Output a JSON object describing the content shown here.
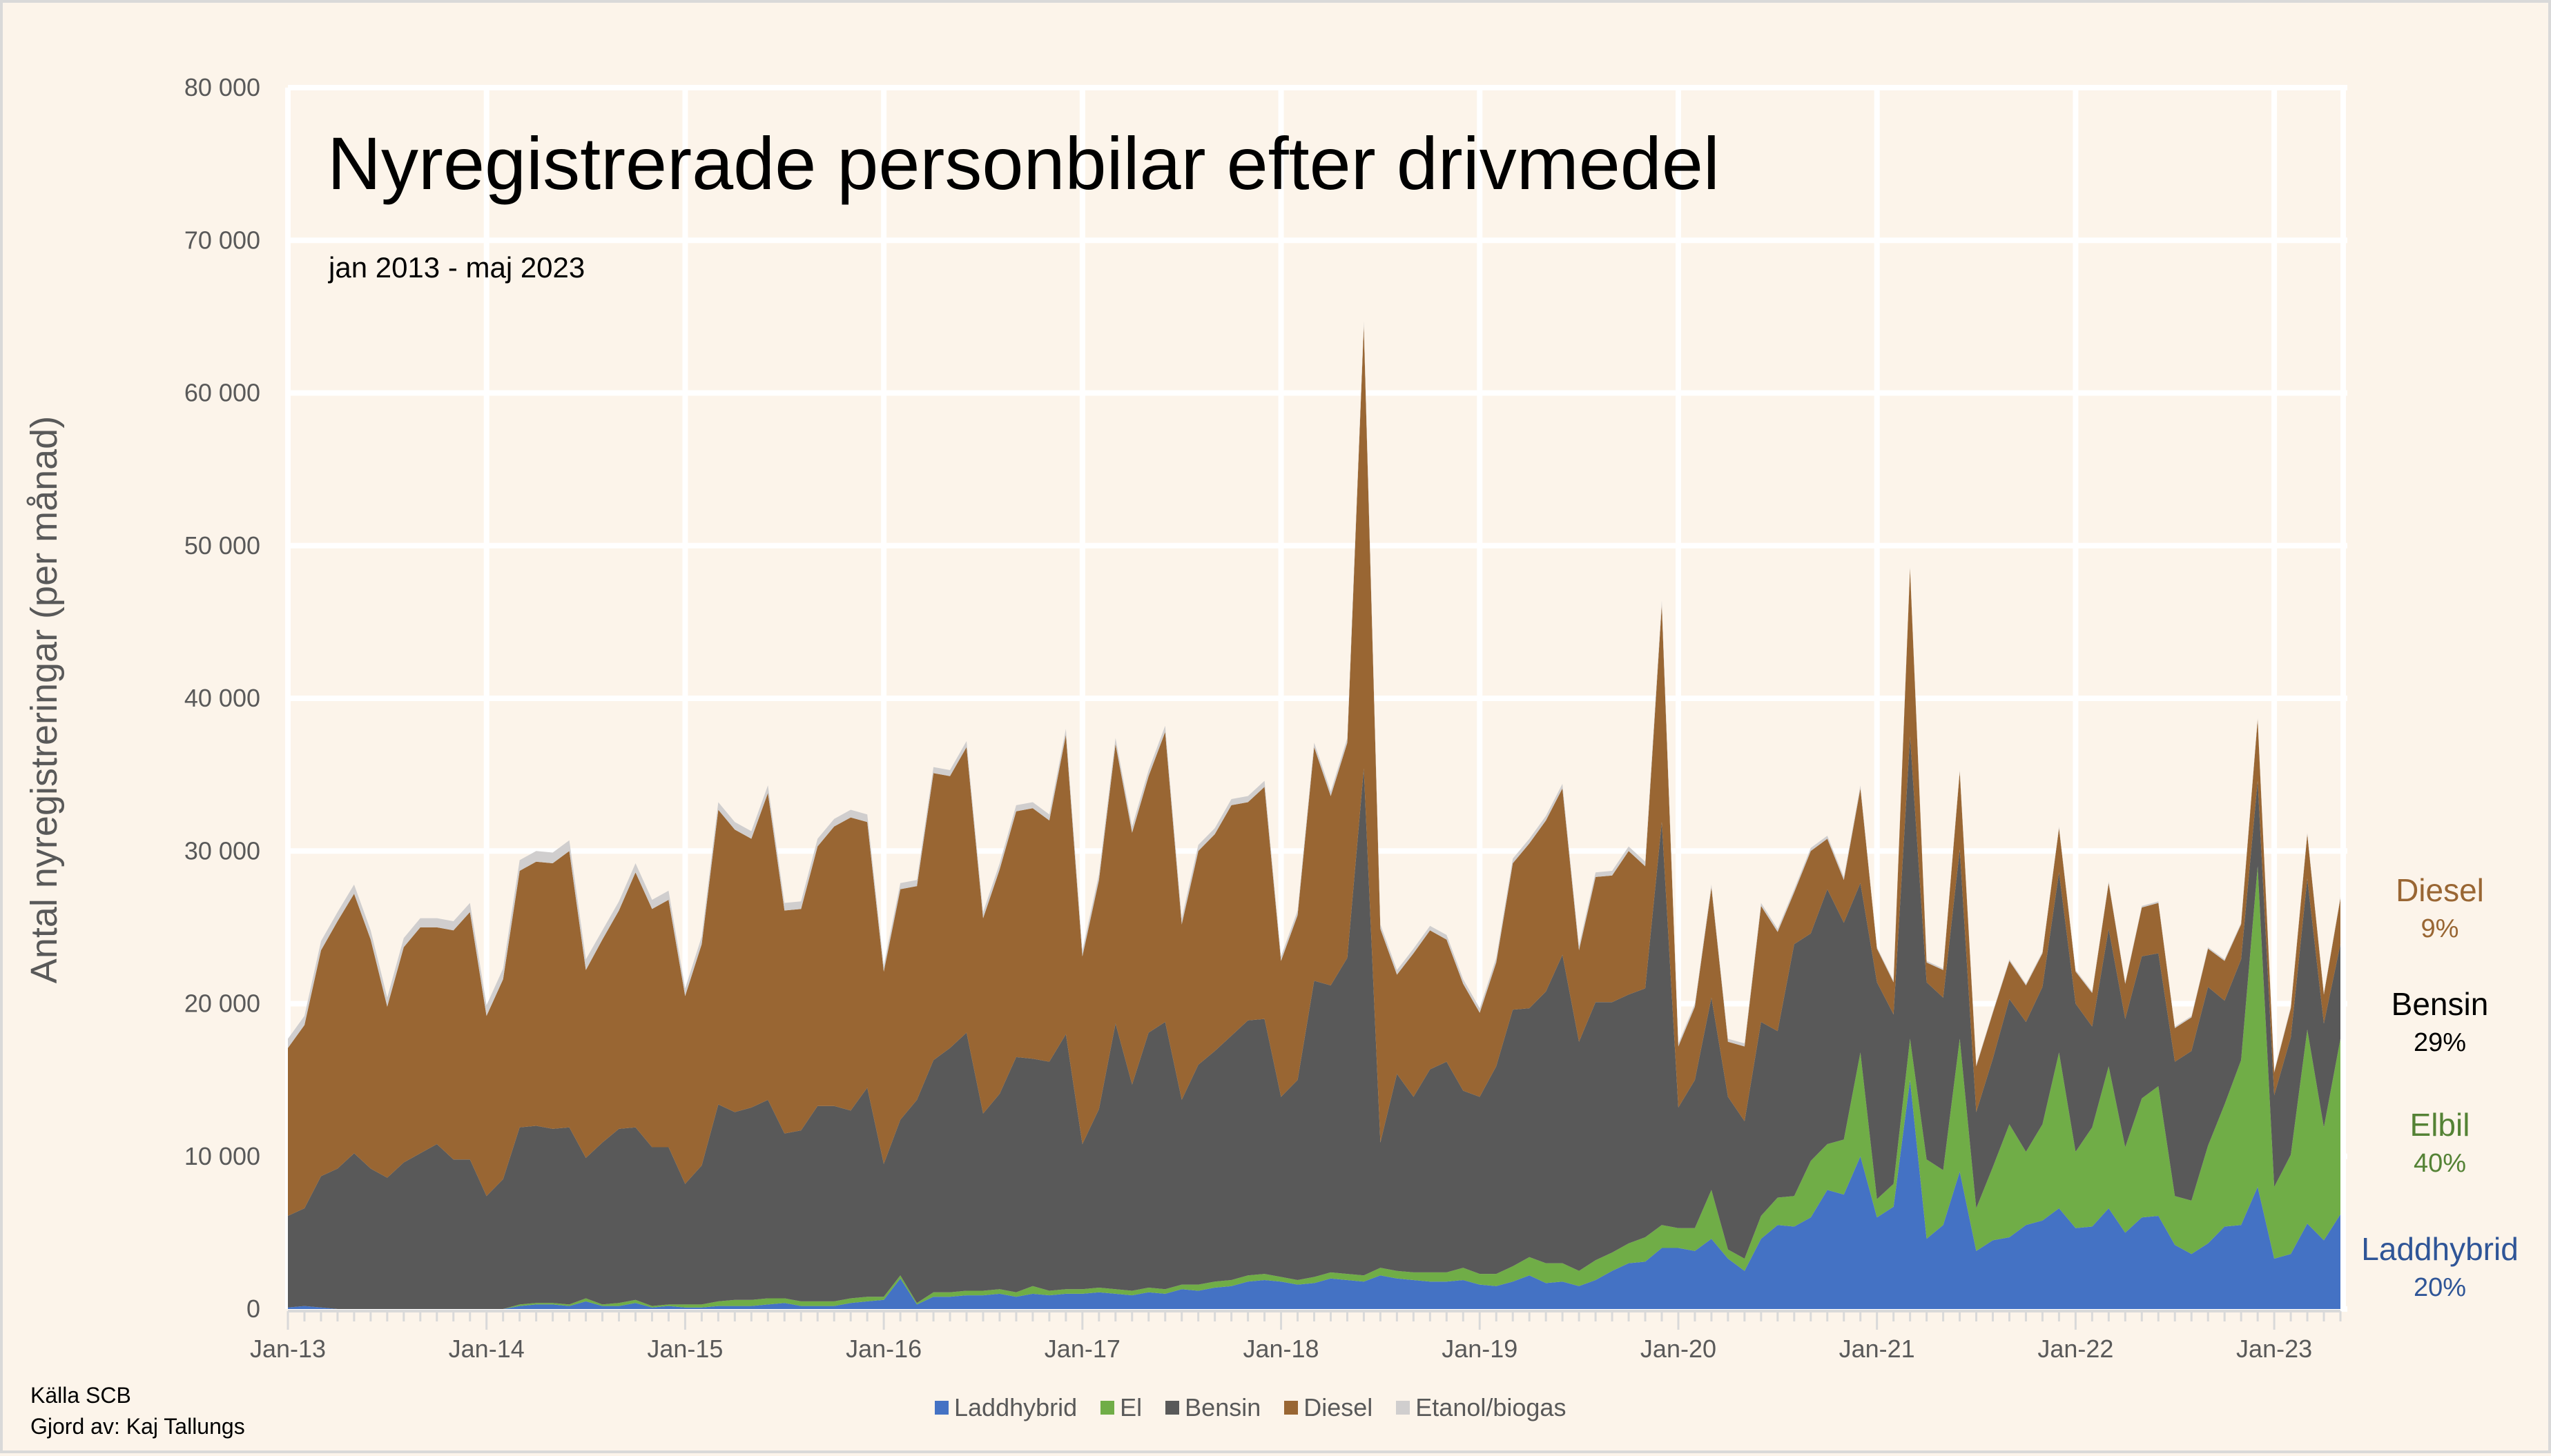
{
  "chart_data": {
    "type": "area",
    "stacked": true,
    "title": "Nyregistrerade personbilar efter drivmedel",
    "subtitle": "jan 2013 - maj 2023",
    "ylabel": "Antal nyregistreringar (per månad)",
    "ylim": [
      0,
      80000
    ],
    "yticks": [
      "0",
      "10 000",
      "20 000",
      "30 000",
      "40 000",
      "50 000",
      "60 000",
      "70 000",
      "80 000"
    ],
    "xtick_labels": [
      "Jan-13",
      "Jan-14",
      "Jan-15",
      "Jan-16",
      "Jan-17",
      "Jan-18",
      "Jan-19",
      "Jan-20",
      "Jan-21",
      "Jan-22",
      "Jan-23"
    ],
    "x_start": "2013-01",
    "months": 125,
    "grid": true,
    "legend_position": "bottom",
    "series": [
      {
        "name": "Laddhybrid",
        "color": "#4472c4",
        "values": [
          100,
          200,
          100,
          0,
          0,
          0,
          0,
          0,
          0,
          0,
          0,
          0,
          0,
          0,
          200,
          300,
          300,
          200,
          500,
          200,
          200,
          400,
          100,
          200,
          100,
          100,
          200,
          200,
          200,
          300,
          400,
          200,
          200,
          200,
          400,
          500,
          600,
          2000,
          300,
          800,
          800,
          900,
          900,
          1000,
          800,
          1000,
          900,
          1000,
          1000,
          1100,
          1000,
          900,
          1100,
          1000,
          1300,
          1200,
          1400,
          1500,
          1800,
          1900,
          1800,
          1600,
          1700,
          2000,
          1900,
          1800,
          2200,
          2000,
          1900,
          1800,
          1800,
          1900,
          1600,
          1500,
          1800,
          2200,
          1700,
          1800,
          1500,
          1900,
          2500,
          3000,
          3100,
          4000,
          4000,
          3800,
          4600,
          3300,
          2500,
          4600,
          5500,
          5400,
          6000,
          7800,
          7500,
          10000,
          6000,
          6700,
          15000,
          4600,
          5500,
          9000,
          3800,
          4500,
          4700,
          5500,
          5800,
          6600,
          5300,
          5400,
          6600,
          5000,
          6000,
          6100,
          4200,
          3600,
          4300,
          5400,
          5500,
          8000,
          3300,
          3600,
          5600,
          4500,
          6200
        ]
      },
      {
        "name": "El",
        "color": "#70ad47",
        "values": [
          0,
          0,
          0,
          0,
          0,
          0,
          0,
          0,
          0,
          0,
          0,
          0,
          0,
          0,
          100,
          100,
          100,
          100,
          200,
          100,
          200,
          200,
          100,
          100,
          200,
          200,
          300,
          400,
          400,
          400,
          300,
          300,
          300,
          300,
          300,
          300,
          200,
          200,
          100,
          300,
          300,
          300,
          300,
          300,
          300,
          500,
          300,
          300,
          300,
          300,
          300,
          300,
          300,
          300,
          300,
          400,
          400,
          400,
          400,
          400,
          300,
          300,
          400,
          400,
          400,
          400,
          500,
          500,
          500,
          600,
          600,
          800,
          700,
          800,
          1000,
          1200,
          1300,
          1200,
          1000,
          1300,
          1200,
          1300,
          1600,
          1500,
          1300,
          1500,
          3200,
          600,
          800,
          1500,
          1800,
          2000,
          3700,
          3000,
          3600,
          6800,
          1200,
          1500,
          2700,
          5200,
          3600,
          8700,
          2800,
          4800,
          7400,
          4800,
          6300,
          10200,
          5000,
          6500,
          9300,
          5600,
          7800,
          8500,
          3200,
          3500,
          6400,
          8000,
          10800,
          21000,
          4700,
          6500,
          12700,
          7400,
          11500
        ]
      },
      {
        "name": "Bensin",
        "color": "#595959",
        "values": [
          6000,
          6400,
          8600,
          9200,
          10200,
          9200,
          8600,
          9600,
          10200,
          10800,
          9800,
          9800,
          7400,
          8500,
          11600,
          11600,
          11400,
          11600,
          9200,
          10600,
          11400,
          11300,
          10400,
          10300,
          7900,
          9100,
          12900,
          12300,
          12600,
          13000,
          10800,
          11200,
          12800,
          12800,
          12300,
          13700,
          8700,
          10200,
          13300,
          15200,
          16000,
          16900,
          11600,
          12800,
          15400,
          14900,
          15000,
          16700,
          9500,
          11700,
          17400,
          13500,
          16700,
          17500,
          12100,
          14400,
          15100,
          16000,
          16700,
          16700,
          11800,
          13100,
          19400,
          18800,
          20700,
          33200,
          8200,
          12900,
          11500,
          13300,
          13800,
          11600,
          11600,
          13600,
          16800,
          16300,
          17800,
          20200,
          15000,
          16900,
          16400,
          16300,
          16300,
          26400,
          7900,
          9700,
          12600,
          10000,
          9000,
          12700,
          10900,
          16500,
          14900,
          16700,
          14200,
          11100,
          14200,
          11100,
          19800,
          11600,
          11300,
          12400,
          6300,
          7100,
          8200,
          8500,
          9000,
          11800,
          9700,
          6600,
          9000,
          8400,
          9300,
          8700,
          8800,
          9800,
          10400,
          6800,
          6600,
          5600,
          6000,
          7700,
          9900,
          6800,
          6200
        ]
      },
      {
        "name": "Diesel",
        "color": "#996633",
        "values": [
          11000,
          12000,
          14800,
          16200,
          17000,
          15000,
          11200,
          14100,
          14800,
          14200,
          15000,
          16200,
          11800,
          13100,
          16800,
          17300,
          17400,
          18100,
          12300,
          13300,
          14300,
          16700,
          15600,
          16200,
          12300,
          14500,
          19300,
          18500,
          17600,
          20100,
          14600,
          14500,
          17000,
          18300,
          19200,
          17400,
          12600,
          15100,
          14000,
          18800,
          17800,
          18700,
          12800,
          14700,
          16100,
          16400,
          15800,
          19600,
          12300,
          15000,
          18300,
          16500,
          16800,
          19000,
          11500,
          14000,
          14200,
          15100,
          14300,
          15200,
          8900,
          10800,
          15300,
          12400,
          14100,
          29000,
          14000,
          6500,
          9400,
          9100,
          8000,
          7000,
          5500,
          6800,
          9600,
          10800,
          11200,
          10900,
          6000,
          8200,
          8300,
          9400,
          8000,
          14200,
          4000,
          4800,
          7200,
          3600,
          4900,
          7600,
          6500,
          3400,
          5400,
          3300,
          2800,
          6200,
          2200,
          2100,
          11000,
          1300,
          1800,
          5100,
          3000,
          3000,
          2500,
          2400,
          2200,
          2900,
          2100,
          2200,
          3000,
          2300,
          3200,
          3300,
          2200,
          2200,
          2500,
          2600,
          2300,
          4000,
          1500,
          1900,
          2900,
          1900,
          3000
        ]
      },
      {
        "name": "Etanol/biogas",
        "color": "#d0cece",
        "values": [
          600,
          600,
          600,
          600,
          600,
          600,
          600,
          600,
          600,
          600,
          600,
          600,
          700,
          700,
          700,
          700,
          700,
          700,
          700,
          600,
          600,
          600,
          600,
          600,
          500,
          500,
          500,
          500,
          500,
          500,
          500,
          500,
          500,
          500,
          500,
          500,
          400,
          400,
          400,
          400,
          400,
          400,
          400,
          400,
          400,
          400,
          400,
          400,
          400,
          400,
          400,
          400,
          400,
          400,
          400,
          400,
          400,
          400,
          400,
          400,
          300,
          300,
          300,
          300,
          300,
          300,
          300,
          300,
          300,
          300,
          300,
          300,
          300,
          300,
          300,
          300,
          300,
          300,
          300,
          300,
          300,
          300,
          300,
          300,
          200,
          200,
          200,
          200,
          200,
          200,
          200,
          200,
          200,
          200,
          200,
          200,
          100,
          100,
          100,
          100,
          100,
          100,
          100,
          100,
          100,
          100,
          100,
          100,
          100,
          100,
          100,
          100,
          100,
          100,
          100,
          100,
          100,
          100,
          100,
          100,
          100,
          100,
          100,
          100,
          100
        ]
      }
    ]
  },
  "side_labels": [
    {
      "name": "Diesel",
      "pct": "9%",
      "color": "#996633"
    },
    {
      "name": "Bensin",
      "pct": "29%",
      "color": "#000000"
    },
    {
      "name": "Elbil",
      "pct": "40%",
      "color": "#548235"
    },
    {
      "name": "Laddhybrid",
      "pct": "20%",
      "color": "#2f5597"
    }
  ],
  "footer": {
    "source": "Källa SCB",
    "author": "Gjord av: Kaj Tallungs"
  }
}
